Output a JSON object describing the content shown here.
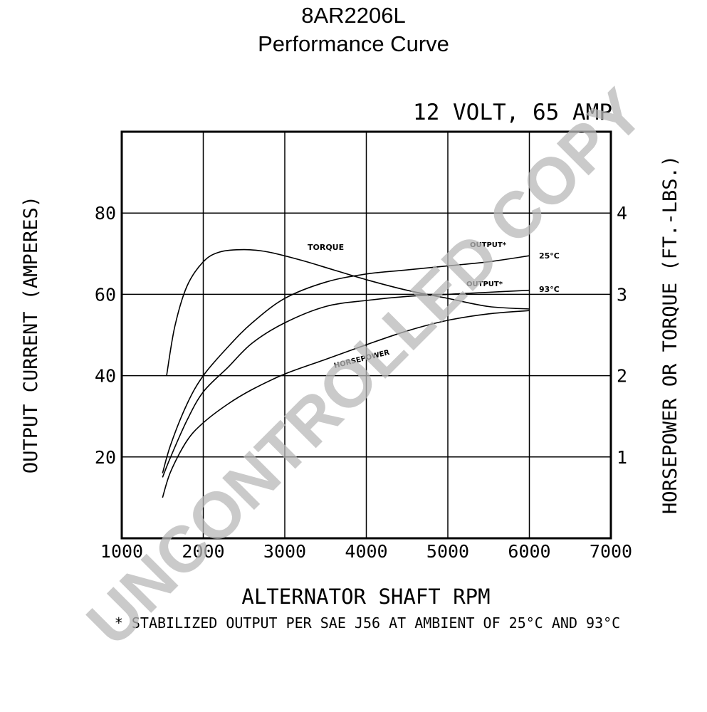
{
  "header": {
    "title": "8AR2206L",
    "subtitle": "Performance Curve"
  },
  "watermark": "UNCONTROLLED COPY",
  "footnote": "* STABILIZED OUTPUT PER SAE J56 AT AMBIENT OF 25°C AND 93°C",
  "chart_data": {
    "type": "line",
    "title": "12 VOLT, 65 AMP",
    "xlabel": "ALTERNATOR SHAFT RPM",
    "ylabel": "OUTPUT CURRENT (AMPERES)",
    "y2label": "HORSEPOWER OR TORQUE (FT.-LBS.)",
    "xlim": [
      1000,
      7000
    ],
    "ylim": [
      0,
      100
    ],
    "y2lim": [
      0,
      5
    ],
    "grid": true,
    "x_ticks": [
      1000,
      2000,
      3000,
      4000,
      5000,
      6000,
      7000
    ],
    "y_ticks": [
      20,
      40,
      60,
      80
    ],
    "y2_ticks": [
      1,
      2,
      3,
      4
    ],
    "series": [
      {
        "name": "TORQUE",
        "axis": "right",
        "x": [
          1550,
          1650,
          1800,
          2000,
          2200,
          2500,
          2800,
          3200,
          3600,
          4000,
          4500,
          5000,
          5500,
          6000
        ],
        "y": [
          2.0,
          2.6,
          3.1,
          3.4,
          3.52,
          3.55,
          3.52,
          3.42,
          3.3,
          3.18,
          3.05,
          2.95,
          2.85,
          2.82
        ]
      },
      {
        "name": "OUTPUT* 25°C",
        "axis": "left",
        "x": [
          1500,
          1600,
          1800,
          2000,
          2300,
          2600,
          3000,
          3500,
          4000,
          4500,
          5000,
          5500,
          6000
        ],
        "y": [
          16,
          23,
          33,
          40,
          47,
          53,
          59,
          63,
          65,
          66,
          67,
          68,
          69.5
        ]
      },
      {
        "name": "OUTPUT* 93°C",
        "axis": "left",
        "x": [
          1500,
          1600,
          1800,
          2000,
          2300,
          2600,
          3000,
          3500,
          4000,
          4500,
          5000,
          5500,
          6000
        ],
        "y": [
          15,
          20,
          29,
          36,
          42,
          48,
          53,
          57,
          58.5,
          59.5,
          60,
          60.5,
          61
        ]
      },
      {
        "name": "HORSEPOWER",
        "axis": "right",
        "x": [
          1500,
          1600,
          1800,
          2000,
          2300,
          2600,
          3000,
          3500,
          4000,
          4500,
          5000,
          5500,
          6000
        ],
        "y": [
          0.5,
          0.82,
          1.2,
          1.42,
          1.65,
          1.83,
          2.02,
          2.2,
          2.38,
          2.55,
          2.68,
          2.76,
          2.8
        ]
      }
    ],
    "annotations": [
      "TORQUE",
      "OUTPUT*",
      "25°C",
      "OUTPUT*",
      "93°C",
      "HORSEPOWER"
    ]
  }
}
